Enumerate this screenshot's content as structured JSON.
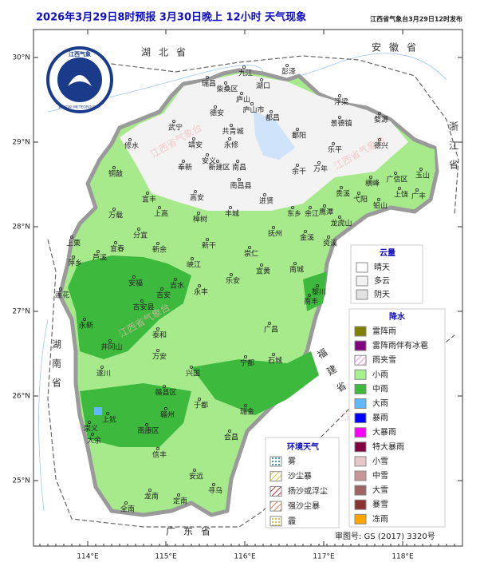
{
  "header": {
    "title": "2026年3月29日8时预报 3月30日晚上 12小时  天气现象",
    "issuer": "江西省气象台3月29日12时发布"
  },
  "logo": {
    "name": "江西气象",
    "subtitle": "JIANGXI METEOROLOGY"
  },
  "axes": {
    "lat_ticks": [
      "30°N",
      "29°N",
      "28°N",
      "27°N",
      "26°N",
      "25°N"
    ],
    "lon_ticks": [
      "114°E",
      "115°E",
      "116°E",
      "117°E",
      "118°E"
    ]
  },
  "provinces": [
    "湖北省",
    "安徽省",
    "浙江省",
    "湖南省",
    "福建省",
    "广东省"
  ],
  "watermark": "江西省气象台",
  "cities": [
    "九江",
    "彭泽",
    "瑞昌",
    "柴桑区",
    "湖口",
    "庐山",
    "庐山市",
    "武宁",
    "德安",
    "共青城",
    "都昌",
    "浮梁",
    "景德镇",
    "婺源",
    "修水",
    "永修",
    "鄱阳",
    "乐平",
    "德兴",
    "铜鼓",
    "靖安",
    "奉新",
    "安义",
    "新建区",
    "南昌",
    "南昌县",
    "余干",
    "万年",
    "玉山",
    "广信区",
    "横峰",
    "宜丰",
    "高安",
    "进贤",
    "贵溪",
    "弋阳",
    "上饶",
    "广丰",
    "铅山",
    "上高",
    "万载",
    "樟树",
    "丰城",
    "东乡",
    "余江",
    "鹰潭",
    "龙虎山",
    "分宜",
    "宜春",
    "新余",
    "抚州",
    "金溪",
    "资溪",
    "上栗",
    "萍乡",
    "芦溪",
    "新干",
    "崇仁",
    "峡江",
    "宜黄",
    "南城",
    "莲花",
    "安福",
    "吉水",
    "乐安",
    "南丰",
    "黎川",
    "永丰",
    "吉安",
    "吉安县",
    "永新",
    "井冈山",
    "泰和",
    "广昌",
    "万安",
    "宁都",
    "石城",
    "遂川",
    "兴国",
    "赣县区",
    "于都",
    "瑞金",
    "南康区",
    "上犹",
    "崇义",
    "大余",
    "赣州",
    "会昌",
    "信丰",
    "安远",
    "龙南",
    "全南",
    "定南",
    "寻乌"
  ],
  "legend_cloud": {
    "title": "云量",
    "items": [
      {
        "label": "晴天",
        "color": "#ffffff"
      },
      {
        "label": "多云",
        "color": "#f2f2f2"
      },
      {
        "label": "阴天",
        "color": "#e2e2e2"
      }
    ]
  },
  "legend_precip": {
    "title": "降水",
    "items": [
      {
        "label": "雷阵雨",
        "color": "#808000"
      },
      {
        "label": "雷阵雨伴有冰雹",
        "color": "#800080"
      },
      {
        "label": "雨夹雪",
        "color": "url(#hatchPink)"
      },
      {
        "label": "小雨",
        "color": "#a6f28f"
      },
      {
        "label": "中雨",
        "color": "#3dba3d"
      },
      {
        "label": "大雨",
        "color": "#61b8ff"
      },
      {
        "label": "暴雨",
        "color": "#0000fe"
      },
      {
        "label": "大暴雨",
        "color": "#fa00fa"
      },
      {
        "label": "特大暴雨",
        "color": "#800040"
      },
      {
        "label": "小雪",
        "color": "#e6c8c8"
      },
      {
        "label": "中雪",
        "color": "#c89696"
      },
      {
        "label": "大雪",
        "color": "#a06464"
      },
      {
        "label": "暴雪",
        "color": "#8a3232"
      },
      {
        "label": "冻雨",
        "color": "#ffa500"
      }
    ]
  },
  "legend_env": {
    "title": "环境天气",
    "items": [
      {
        "label": "雾",
        "color": "url(#dotTeal)"
      },
      {
        "label": "沙尘暴",
        "color": "url(#hatchGold)"
      },
      {
        "label": "扬沙或浮尘",
        "color": "url(#hatchRed)"
      },
      {
        "label": "强沙尘暴",
        "color": "url(#hatchOrange)"
      },
      {
        "label": "霾",
        "color": "url(#dotYellow)"
      }
    ]
  },
  "footer": "审图号: GS (2017) 3320号"
}
